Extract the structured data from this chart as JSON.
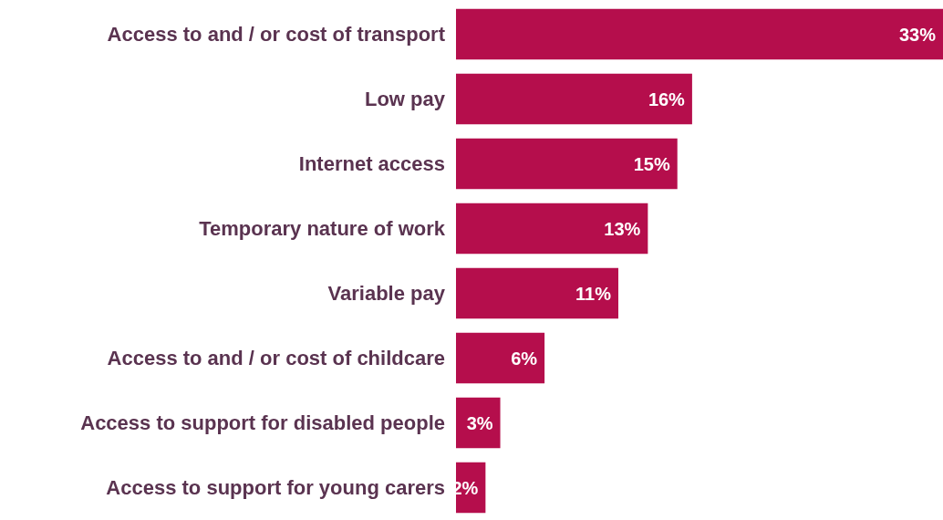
{
  "chart_data": {
    "type": "bar",
    "orientation": "horizontal",
    "categories": [
      "Access to and / or cost of transport",
      "Low pay",
      "Internet access",
      "Temporary nature of work",
      "Variable pay",
      "Access to and / or cost of childcare",
      "Access to support for disabled people",
      "Access to support for young carers"
    ],
    "values": [
      33,
      16,
      15,
      13,
      11,
      6,
      3,
      2
    ],
    "value_labels": [
      "33%",
      "16%",
      "15%",
      "13%",
      "11%",
      "6%",
      "3%",
      "2%"
    ],
    "color": "#b50e4c"
  }
}
